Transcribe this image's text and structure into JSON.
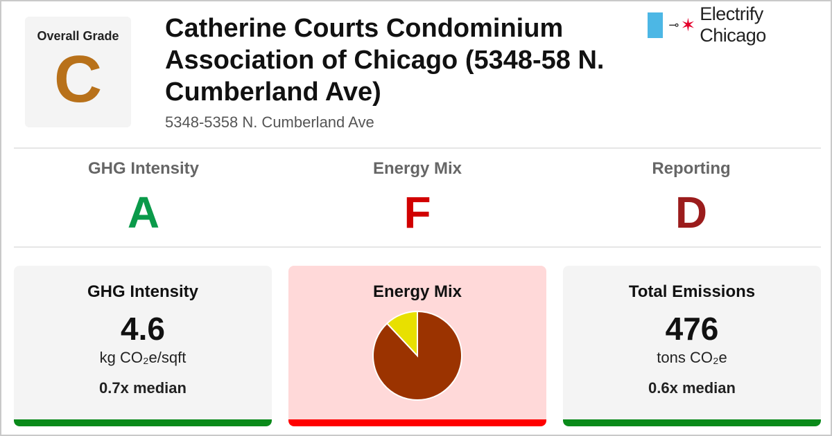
{
  "overall": {
    "label": "Overall Grade",
    "grade": "C",
    "color": "#b8711a"
  },
  "building": {
    "title": "Catherine Courts Condominium Association of Chicago (5348-58 N. Cumberland Ave)",
    "address": "5348-5358 N. Cumberland Ave"
  },
  "brand": {
    "name": "Electrify Chicago",
    "flag_color": "#4cb7e5",
    "star_color": "#e4002b",
    "plug_icon": "plug-icon",
    "star_icon": "star-icon"
  },
  "sub_grades": [
    {
      "label": "GHG Intensity",
      "grade": "A",
      "color": "#0a9a4a"
    },
    {
      "label": "Energy Mix",
      "grade": "F",
      "color": "#d10000"
    },
    {
      "label": "Reporting",
      "grade": "D",
      "color": "#9b1c1c"
    }
  ],
  "cards": {
    "ghg": {
      "title": "GHG Intensity",
      "value": "4.6",
      "unit": "kg CO₂e/sqft",
      "median": "0.7x median",
      "bar_color": "#0a8a1a"
    },
    "energy": {
      "title": "Energy Mix",
      "bg_color": "#ffd9d9",
      "bar_color": "#ff0000"
    },
    "total": {
      "title": "Total Emissions",
      "value": "476",
      "unit": "tons CO₂e",
      "median": "0.6x median",
      "bar_color": "#0a8a1a"
    }
  },
  "chart_data": {
    "type": "pie",
    "values": [
      88,
      12
    ],
    "colors": [
      "#9b3300",
      "#e8e000"
    ]
  }
}
